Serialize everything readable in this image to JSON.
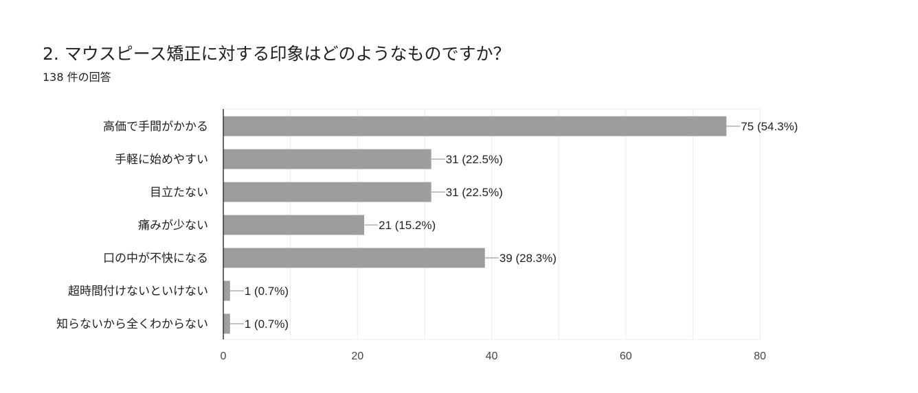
{
  "header": {
    "title": "2. マウスピース矯正に対する印象はどのようなものですか？",
    "response_count": "138 件の回答"
  },
  "colors": {
    "bar": "#9e9e9e",
    "grid": "#ececec",
    "axis": "#333333",
    "leader": "#888888"
  },
  "chart_data": {
    "type": "bar",
    "orientation": "horizontal",
    "categories": [
      "高価で手間がかかる",
      "手軽に始めやすい",
      "目立たない",
      "痛みが少ない",
      "口の中が不快になる",
      "超時間付けないといけない",
      "知らないから全くわからない"
    ],
    "values": [
      75,
      31,
      31,
      21,
      39,
      1,
      1
    ],
    "value_labels": [
      "75 (54.3%)",
      "31 (22.5%)",
      "31 (22.5%)",
      "21 (15.2%)",
      "39 (28.3%)",
      "1 (0.7%)",
      "1 (0.7%)"
    ],
    "xlim": [
      0,
      80
    ],
    "xticks": [
      0,
      20,
      40,
      60,
      80
    ],
    "grid": true,
    "legend": "none"
  }
}
